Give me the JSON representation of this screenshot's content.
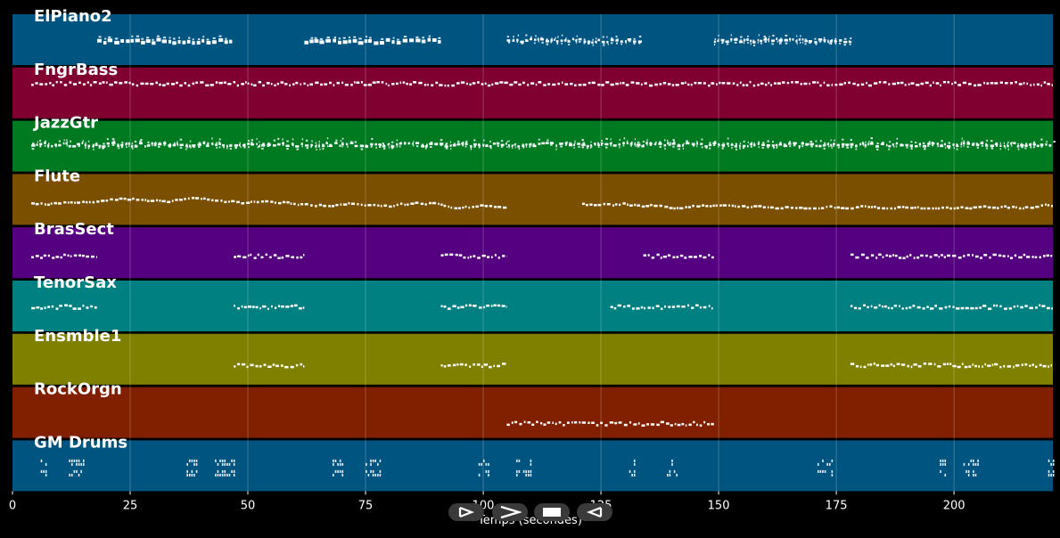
{
  "chart_data": {
    "type": "piano-roll",
    "xlabel": "Temps (secondes)",
    "xlim": [
      0,
      221
    ],
    "xticks": [
      0,
      25,
      50,
      75,
      100,
      125,
      150,
      175,
      200
    ],
    "grid": true,
    "tracks": [
      {
        "name": "ElPiano2",
        "color": "#005580",
        "segments": [
          [
            18,
            47,
            "dense",
            0.5
          ],
          [
            62,
            91,
            "dense",
            0.5
          ],
          [
            105,
            134,
            "chords",
            0.5
          ],
          [
            149,
            178,
            "chords",
            0.5
          ]
        ]
      },
      {
        "name": "FngrBass",
        "color": "#800030",
        "segments": [
          [
            4,
            221,
            "line",
            0.7
          ]
        ]
      },
      {
        "name": "JazzGtr",
        "color": "#007a20",
        "segments": [
          [
            4,
            221,
            "chords",
            0.55
          ]
        ]
      },
      {
        "name": "Flute",
        "color": "#7a4f00",
        "segments": [
          [
            4,
            105,
            "melody",
            0.45
          ],
          [
            121,
            221,
            "melody",
            0.45
          ]
        ]
      },
      {
        "name": "BrasSect",
        "color": "#550080",
        "segments": [
          [
            4,
            18,
            "line",
            0.45
          ],
          [
            47,
            62,
            "line",
            0.45
          ],
          [
            91,
            105,
            "line",
            0.45
          ],
          [
            134,
            149,
            "line",
            0.45
          ],
          [
            178,
            221,
            "line",
            0.45
          ]
        ]
      },
      {
        "name": "TenorSax",
        "color": "#008080",
        "segments": [
          [
            4,
            18,
            "line",
            0.5
          ],
          [
            47,
            62,
            "line",
            0.5
          ],
          [
            91,
            105,
            "line",
            0.5
          ],
          [
            127,
            149,
            "line",
            0.5
          ],
          [
            178,
            221,
            "line",
            0.5
          ]
        ]
      },
      {
        "name": "Ensmble1",
        "color": "#808000",
        "segments": [
          [
            47,
            62,
            "line",
            0.4
          ],
          [
            91,
            105,
            "line",
            0.4
          ],
          [
            178,
            221,
            "line",
            0.4
          ]
        ]
      },
      {
        "name": "RockOrgn",
        "color": "#802000",
        "segments": [
          [
            105,
            149,
            "line",
            0.3
          ]
        ]
      },
      {
        "name": "GM Drums",
        "color": "#005580",
        "segments": [
          [
            6,
            7,
            "drums",
            0.5
          ],
          [
            12,
            15,
            "drums",
            0.5
          ],
          [
            37,
            39,
            "drums",
            0.5
          ],
          [
            43,
            47,
            "drums",
            0.5
          ],
          [
            68,
            70,
            "drums",
            0.5
          ],
          [
            75,
            78,
            "drums",
            0.5
          ],
          [
            99,
            101,
            "drums",
            0.5
          ],
          [
            107,
            110,
            "drums",
            0.5
          ],
          [
            131,
            132,
            "drums",
            0.5
          ],
          [
            139,
            141,
            "drums",
            0.5
          ],
          [
            171,
            174,
            "drums",
            0.5
          ],
          [
            197,
            198,
            "drums",
            0.5
          ],
          [
            202,
            205,
            "drums",
            0.5
          ],
          [
            220,
            221,
            "drums",
            0.5
          ]
        ]
      }
    ]
  },
  "controls": {
    "buttons": [
      {
        "name": "step-forward-button",
        "icon": "step-forward-icon"
      },
      {
        "name": "play-button",
        "icon": "play-icon"
      },
      {
        "name": "stop-button",
        "icon": "stop-icon"
      },
      {
        "name": "step-back-button",
        "icon": "step-back-icon"
      }
    ]
  }
}
